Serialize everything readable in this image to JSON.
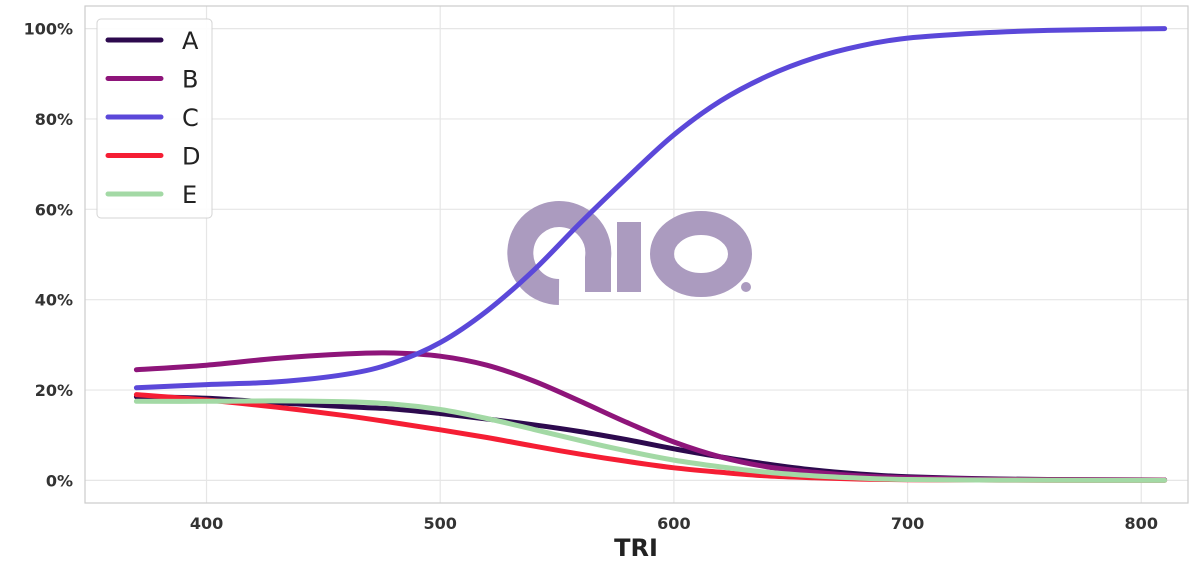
{
  "chart_data": {
    "type": "line",
    "title": "",
    "xlabel": "TRI",
    "ylabel": "",
    "xlim": [
      348,
      820
    ],
    "ylim": [
      -5,
      105
    ],
    "x_ticks": [
      400,
      500,
      600,
      700,
      800
    ],
    "y_ticks": [
      0,
      20,
      40,
      60,
      80,
      100
    ],
    "y_tick_labels": [
      "0%",
      "20%",
      "40%",
      "60%",
      "80%",
      "100%"
    ],
    "grid": true,
    "legend_position": "top-left",
    "watermark": "aio",
    "x": [
      370,
      400,
      430,
      460,
      480,
      500,
      520,
      540,
      560,
      580,
      600,
      620,
      640,
      660,
      680,
      700,
      730,
      760,
      810
    ],
    "series": [
      {
        "name": "A",
        "color": "#2d0a4e",
        "values": [
          18.5,
          18.2,
          17.2,
          16.3,
          15.8,
          14.8,
          13.6,
          12.3,
          10.8,
          9.0,
          7.0,
          5.2,
          3.6,
          2.3,
          1.4,
          0.8,
          0.4,
          0.2,
          0.1
        ]
      },
      {
        "name": "B",
        "color": "#8e157a",
        "values": [
          24.5,
          25.5,
          27.0,
          28.0,
          28.2,
          27.5,
          25.5,
          22.0,
          17.5,
          12.8,
          8.5,
          5.2,
          3.0,
          1.8,
          1.0,
          0.6,
          0.3,
          0.15,
          0.1
        ]
      },
      {
        "name": "C",
        "color": "#5b48d9",
        "values": [
          20.5,
          21.2,
          21.8,
          23.5,
          26.0,
          30.5,
          37.5,
          46.5,
          57.0,
          67.0,
          76.5,
          84.0,
          89.5,
          93.5,
          96.2,
          97.9,
          99.0,
          99.6,
          100.0
        ]
      },
      {
        "name": "D",
        "color": "#f51e34",
        "values": [
          19.0,
          17.8,
          16.2,
          14.3,
          12.8,
          11.2,
          9.5,
          7.6,
          5.8,
          4.2,
          2.8,
          1.8,
          1.0,
          0.6,
          0.3,
          0.15,
          0.08,
          0.04,
          0.0
        ]
      },
      {
        "name": "E",
        "color": "#a3d9a5",
        "values": [
          17.5,
          17.5,
          17.6,
          17.4,
          16.9,
          15.7,
          13.7,
          11.3,
          8.8,
          6.5,
          4.5,
          3.0,
          1.8,
          1.0,
          0.5,
          0.2,
          0.1,
          0.05,
          0.0
        ]
      }
    ]
  }
}
